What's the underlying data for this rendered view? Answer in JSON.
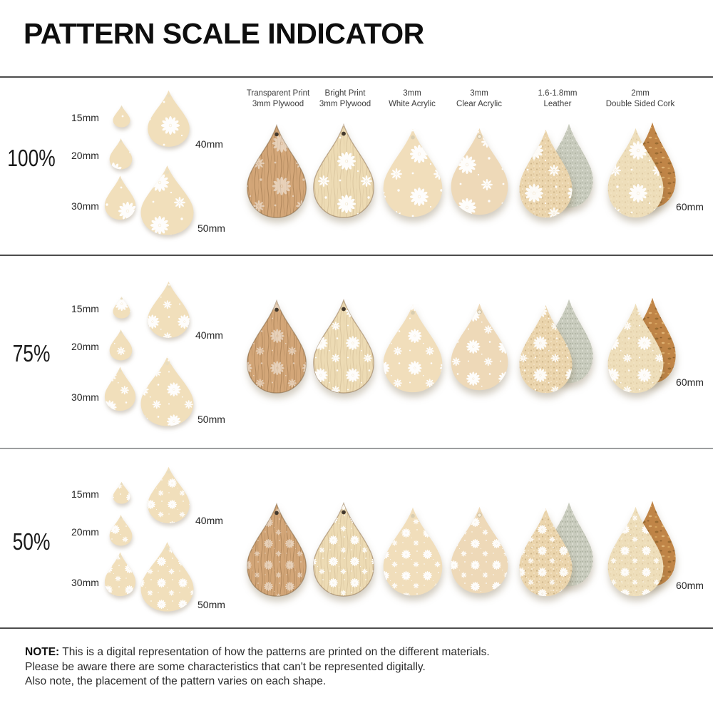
{
  "title": "PATTERN SCALE INDICATOR",
  "columns": [
    {
      "line1": "Transparent Print",
      "line2": "3mm Plywood"
    },
    {
      "line1": "Bright Print",
      "line2": "3mm Plywood"
    },
    {
      "line1": "3mm",
      "line2": "White Acrylic"
    },
    {
      "line1": "3mm",
      "line2": "Clear Acrylic"
    },
    {
      "line1": "1.6-1.8mm",
      "line2": "Leather"
    },
    {
      "line1": "2mm",
      "line2": "Double Sided Cork"
    }
  ],
  "size_labels": {
    "s15": "15mm",
    "s20": "20mm",
    "s30": "30mm",
    "s40": "40mm",
    "s50": "50mm",
    "s60": "60mm"
  },
  "rows": [
    {
      "scale_label": "100%",
      "pattern_scale": 1.0
    },
    {
      "scale_label": "75%",
      "pattern_scale": 0.75
    },
    {
      "scale_label": "50%",
      "pattern_scale": 0.5
    }
  ],
  "pattern": {
    "motif": "white daisy flowers with dots",
    "daisy_color": "#ffffff"
  },
  "materials": {
    "reference": {
      "base": "#f1dfbb",
      "daisy_opacity": 0.95,
      "hole": "#e8ddc1"
    },
    "transparent_plywood": {
      "base": "#d3a678",
      "daisy_opacity": 0.48,
      "hole": "#42382c",
      "texture": "grain",
      "tex_opacity": 0.38,
      "stroke": "#7b5b36"
    },
    "bright_plywood": {
      "base": "#eddbb4",
      "daisy_opacity": 0.95,
      "hole": "#42382c",
      "texture": "grain",
      "tex_opacity": 0.15,
      "stroke": "#8a6a45"
    },
    "white_acrylic": {
      "base": "#f1debb",
      "daisy_opacity": 0.95,
      "hole": "#d9cdb0"
    },
    "clear_acrylic": {
      "base": "#eed9b8",
      "daisy_opacity": 0.95,
      "hole": "#c9bc9f",
      "hole_outline": true
    },
    "leather_front": {
      "base": "#ebd5ad",
      "daisy_opacity": 0.9,
      "texture": "lnoise",
      "tex_opacity": 0.55
    },
    "leather_back": {
      "base": "#c8cbbd",
      "texture": "snoise",
      "tex_opacity": 0.85
    },
    "cork_front": {
      "base": "#eedeba",
      "daisy_opacity": 0.92,
      "texture": "lnoise",
      "tex_opacity": 0.28
    },
    "cork_back": {
      "base": "#c08547",
      "texture": "cork",
      "tex_opacity": 0.9
    }
  },
  "note": {
    "prefix": "NOTE:",
    "line1": "This is a digital representation of how the patterns are printed on the different materials.",
    "line2": "Please be aware there are some characteristics that can't be represented digitally.",
    "line3": "Also note, the placement of the pattern varies on each shape."
  }
}
